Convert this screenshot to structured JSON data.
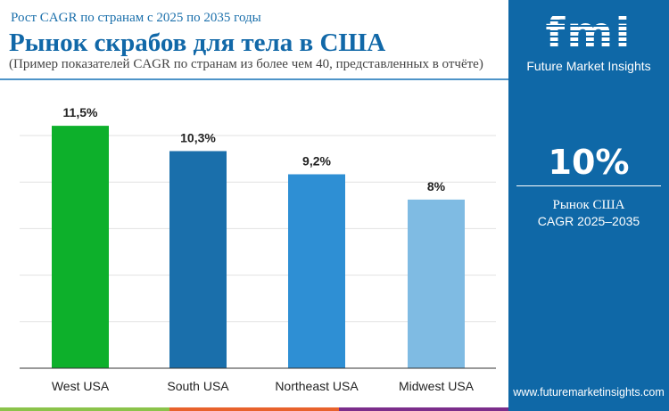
{
  "header": {
    "subtitle": "Рост CAGR по странам с 2025 по 2035 годы",
    "title": "Рынок скрабов для тела в США",
    "note": "(Пример показателей CAGR по странам из более чем 40, представленных в отчёте)"
  },
  "panel": {
    "logo": "fmi",
    "brand": "Future Market Insights",
    "value": "10%",
    "label1": "Рынок США",
    "label2": "CAGR 2025–2035",
    "url": "www.futuremarketinsights.com",
    "bg": "#0f68a7"
  },
  "chart_data": {
    "type": "bar",
    "categories": [
      "West USA",
      "South USA",
      "Northeast USA",
      "Midwest USA"
    ],
    "values": [
      11.5,
      10.3,
      9.2,
      8
    ],
    "labels": [
      "11,5%",
      "10,3%",
      "9,2%",
      "8%"
    ],
    "colors": [
      "#0db02b",
      "#1a6fab",
      "#2e8fd4",
      "#7fbbe3"
    ],
    "ylim": [
      0,
      14
    ],
    "grid": true
  },
  "stripes": [
    "#8bc34a",
    "#e8622c",
    "#7b2d8b"
  ]
}
